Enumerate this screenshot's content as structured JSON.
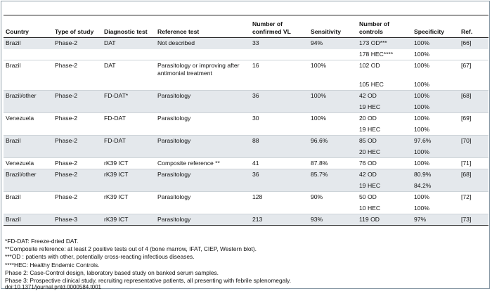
{
  "headers": [
    "Country",
    "Type of study",
    "Diagnostic test",
    "Reference test",
    "Number of confirmed VL",
    "Sensitivity",
    "Number of controls",
    "Specificity",
    "Ref."
  ],
  "rows": [
    {
      "country": "Brazil",
      "type": "Phase-2",
      "diag": "DAT",
      "ref_test": "Not described",
      "confirmed": "33",
      "sens": "94%",
      "controls": "173 OD***",
      "spec": "100%",
      "ref": "[66]",
      "shade": true
    },
    {
      "country": "",
      "type": "",
      "diag": "",
      "ref_test": "",
      "confirmed": "",
      "sens": "",
      "controls": "178 HEC****",
      "spec": "100%",
      "ref": "",
      "shade": false
    },
    {
      "country": "Brazil",
      "type": "Phase-2",
      "diag": "DAT",
      "ref_test": "Parasitology or improving after antimonial treatment",
      "confirmed": "16",
      "sens": "100%",
      "controls": "102 OD",
      "spec": "100%",
      "ref": "[67]",
      "shade": false
    },
    {
      "country": "",
      "type": "",
      "diag": "",
      "ref_test": "",
      "confirmed": "",
      "sens": "",
      "controls": "105 HEC",
      "spec": "100%",
      "ref": "",
      "shade": false
    },
    {
      "country": "Brazil/other",
      "type": "Phase-2",
      "diag": "FD-DAT*",
      "ref_test": "Parasitology",
      "confirmed": "36",
      "sens": "100%",
      "controls": "42 OD",
      "spec": "100%",
      "ref": "[68]",
      "shade": true
    },
    {
      "country": "",
      "type": "",
      "diag": "",
      "ref_test": "",
      "confirmed": "",
      "sens": "",
      "controls": "19 HEC",
      "spec": "100%",
      "ref": "",
      "shade": true
    },
    {
      "country": "Venezuela",
      "type": "Phase-2",
      "diag": "FD-DAT",
      "ref_test": "Parasitology",
      "confirmed": "30",
      "sens": "100%",
      "controls": "20 OD",
      "spec": "100%",
      "ref": "[69]",
      "shade": false
    },
    {
      "country": "",
      "type": "",
      "diag": "",
      "ref_test": "",
      "confirmed": "",
      "sens": "",
      "controls": "19 HEC",
      "spec": "100%",
      "ref": "",
      "shade": false
    },
    {
      "country": "Brazil",
      "type": "Phase-2",
      "diag": "FD-DAT",
      "ref_test": "Parasitology",
      "confirmed": "88",
      "sens": "96.6%",
      "controls": "85 OD",
      "spec": "97.6%",
      "ref": "[70]",
      "shade": true
    },
    {
      "country": "",
      "type": "",
      "diag": "",
      "ref_test": "",
      "confirmed": "",
      "sens": "",
      "controls": "20 HEC",
      "spec": "100%",
      "ref": "",
      "shade": true
    },
    {
      "country": "Venezuela",
      "type": "Phase-2",
      "diag": "rK39 ICT",
      "ref_test": "Composite reference **",
      "confirmed": "41",
      "sens": "87.8%",
      "controls": "76 OD",
      "spec": "100%",
      "ref": "[71]",
      "shade": false
    },
    {
      "country": "Brazil/other",
      "type": "Phase-2",
      "diag": "rK39 ICT",
      "ref_test": "Parasitology",
      "confirmed": "36",
      "sens": "85.7%",
      "controls": "42 OD",
      "spec": "80.9%",
      "ref": "[68]",
      "shade": true
    },
    {
      "country": "",
      "type": "",
      "diag": "",
      "ref_test": "",
      "confirmed": "",
      "sens": "",
      "controls": "19 HEC",
      "spec": "84.2%",
      "ref": "",
      "shade": true
    },
    {
      "country": "Brazil",
      "type": "Phase-2",
      "diag": "rK39 ICT",
      "ref_test": "Parasitology",
      "confirmed": "128",
      "sens": "90%",
      "controls": "50 OD",
      "spec": "100%",
      "ref": "[72]",
      "shade": false
    },
    {
      "country": "",
      "type": "",
      "diag": "",
      "ref_test": "",
      "confirmed": "",
      "sens": "",
      "controls": "10 HEC",
      "spec": "100%",
      "ref": "",
      "shade": false
    },
    {
      "country": "Brazil",
      "type": "Phase-3",
      "diag": "rK39 ICT",
      "ref_test": "Parasitology",
      "confirmed": "213",
      "sens": "93%",
      "controls": "119 OD",
      "spec": "97%",
      "ref": "[73]",
      "shade": true
    }
  ],
  "footnotes": [
    "*FD-DAT: Freeze-dried DAT.",
    "**Composite reference: at least 2 positive tests out of 4 (bone marrow, IFAT, CIEP, Western blot).",
    "***OD : patients with other, potentially cross-reacting infectious diseases.",
    "****HEC: Healthy Endemic Controls.",
    "Phase 2: Case-Control design, laboratory based study on banked serum samples.",
    "Phase 3: Prospective clinical study, recruiting representative patients, all presenting with febrile splenomegaly."
  ],
  "doi": "doi:10.1371/journal.pntd.0000584.t001"
}
